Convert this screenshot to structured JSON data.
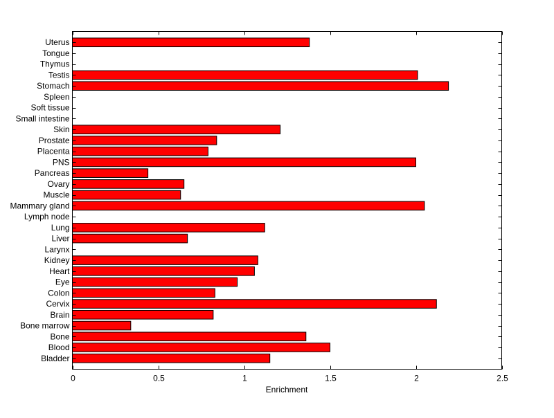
{
  "chart_data": {
    "type": "bar",
    "orientation": "horizontal",
    "title": "",
    "xlabel": "Enrichment",
    "ylabel": "",
    "xlim": [
      0,
      2.5
    ],
    "xticks": [
      "0",
      "0.5",
      "1",
      "1.5",
      "2",
      "2.5"
    ],
    "xtick_values": [
      0,
      0.5,
      1,
      1.5,
      2,
      2.5
    ],
    "bar_color": "#ff0000",
    "categories": [
      "Bladder",
      "Blood",
      "Bone",
      "Bone marrow",
      "Brain",
      "Cervix",
      "Colon",
      "Eye",
      "Heart",
      "Kidney",
      "Larynx",
      "Liver",
      "Lung",
      "Lymph node",
      "Mammary gland",
      "Muscle",
      "Ovary",
      "Pancreas",
      "PNS",
      "Placenta",
      "Prostate",
      "Skin",
      "Small intestine",
      "Soft tissue",
      "Spleen",
      "Stomach",
      "Testis",
      "Thymus",
      "Tongue",
      "Uterus"
    ],
    "values": [
      1.15,
      1.5,
      1.36,
      0.34,
      0.82,
      2.12,
      0.83,
      0.96,
      1.06,
      1.08,
      0,
      0.67,
      1.12,
      0,
      2.05,
      0.63,
      0.65,
      0.44,
      2.0,
      0.79,
      0.84,
      1.21,
      0,
      0,
      0,
      2.19,
      2.01,
      0,
      0,
      1.38
    ]
  }
}
